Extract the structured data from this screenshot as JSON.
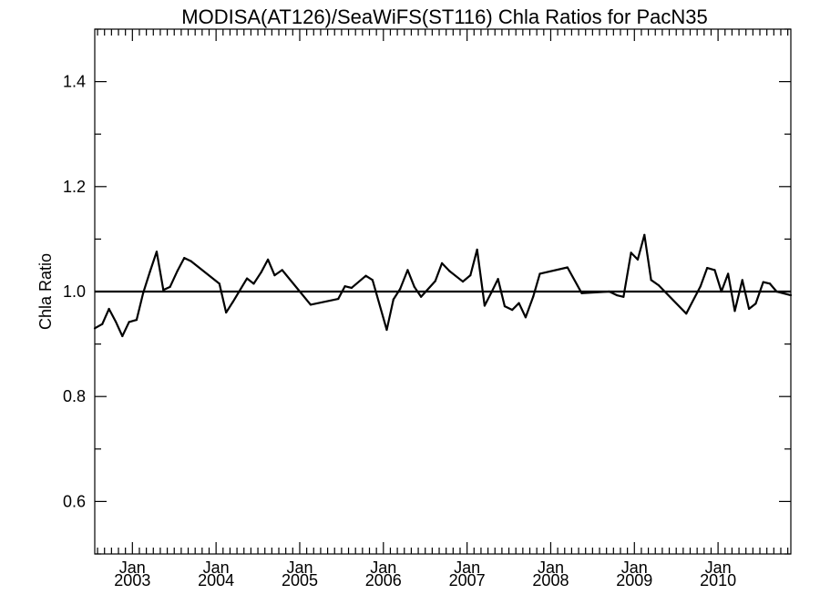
{
  "chart_data": {
    "type": "line",
    "title": "MODISA(AT126)/SeaWiFS(ST116)  Chla Ratios for PacN35",
    "xlabel": "",
    "ylabel": "Chla Ratio",
    "xlim": [
      2002.55,
      2010.87
    ],
    "ylim": [
      0.5,
      1.5
    ],
    "reference_line": 1.0,
    "y_ticks": [
      0.6,
      0.8,
      1.0,
      1.2,
      1.4
    ],
    "y_tick_labels": [
      "0.6",
      "0.8",
      "1.0",
      "1.2",
      "1.4"
    ],
    "x_ticks": [
      {
        "value": 2003.0,
        "month": "Jan",
        "year": "2003"
      },
      {
        "value": 2004.0,
        "month": "Jan",
        "year": "2004"
      },
      {
        "value": 2005.0,
        "month": "Jan",
        "year": "2005"
      },
      {
        "value": 2006.0,
        "month": "Jan",
        "year": "2006"
      },
      {
        "value": 2007.0,
        "month": "Jan",
        "year": "2007"
      },
      {
        "value": 2008.0,
        "month": "Jan",
        "year": "2008"
      },
      {
        "value": 2009.0,
        "month": "Jan",
        "year": "2009"
      },
      {
        "value": 2010.0,
        "month": "Jan",
        "year": "2010"
      }
    ],
    "grid": false,
    "series": [
      {
        "points": [
          [
            2002.55,
            0.93
          ],
          [
            2002.64,
            0.938
          ],
          [
            2002.72,
            0.967
          ],
          [
            2002.8,
            0.943
          ],
          [
            2002.88,
            0.915
          ],
          [
            2002.96,
            0.942
          ],
          [
            2003.05,
            0.946
          ],
          [
            2003.13,
            0.998
          ],
          [
            2003.21,
            1.038
          ],
          [
            2003.29,
            1.076
          ],
          [
            2003.37,
            1.003
          ],
          [
            2003.45,
            1.009
          ],
          [
            2003.54,
            1.04
          ],
          [
            2003.62,
            1.064
          ],
          [
            2003.7,
            1.058
          ],
          [
            2004.04,
            1.015
          ],
          [
            2004.12,
            0.96
          ],
          [
            2004.2,
            0.98
          ],
          [
            2004.37,
            1.025
          ],
          [
            2004.45,
            1.015
          ],
          [
            2004.54,
            1.037
          ],
          [
            2004.62,
            1.061
          ],
          [
            2004.7,
            1.031
          ],
          [
            2004.79,
            1.041
          ],
          [
            2005.13,
            0.975
          ],
          [
            2005.46,
            0.986
          ],
          [
            2005.54,
            1.01
          ],
          [
            2005.62,
            1.007
          ],
          [
            2005.79,
            1.03
          ],
          [
            2005.87,
            1.022
          ],
          [
            2006.04,
            0.927
          ],
          [
            2006.12,
            0.985
          ],
          [
            2006.2,
            1.005
          ],
          [
            2006.29,
            1.041
          ],
          [
            2006.37,
            1.009
          ],
          [
            2006.45,
            0.99
          ],
          [
            2006.62,
            1.02
          ],
          [
            2006.7,
            1.054
          ],
          [
            2006.79,
            1.039
          ],
          [
            2006.95,
            1.019
          ],
          [
            2007.04,
            1.031
          ],
          [
            2007.12,
            1.08
          ],
          [
            2007.21,
            0.973
          ],
          [
            2007.29,
            0.998
          ],
          [
            2007.37,
            1.024
          ],
          [
            2007.45,
            0.972
          ],
          [
            2007.54,
            0.965
          ],
          [
            2007.62,
            0.978
          ],
          [
            2007.7,
            0.951
          ],
          [
            2007.79,
            0.99
          ],
          [
            2007.87,
            1.034
          ],
          [
            2008.2,
            1.046
          ],
          [
            2008.37,
            0.997
          ],
          [
            2008.7,
            1.0
          ],
          [
            2008.79,
            0.993
          ],
          [
            2008.87,
            0.99
          ],
          [
            2008.96,
            1.074
          ],
          [
            2009.04,
            1.061
          ],
          [
            2009.12,
            1.108
          ],
          [
            2009.2,
            1.022
          ],
          [
            2009.29,
            1.012
          ],
          [
            2009.62,
            0.958
          ],
          [
            2009.79,
            1.01
          ],
          [
            2009.87,
            1.045
          ],
          [
            2009.96,
            1.041
          ],
          [
            2010.04,
            1.0
          ],
          [
            2010.12,
            1.034
          ],
          [
            2010.2,
            0.963
          ],
          [
            2010.29,
            1.022
          ],
          [
            2010.37,
            0.967
          ],
          [
            2010.45,
            0.977
          ],
          [
            2010.54,
            1.018
          ],
          [
            2010.62,
            1.015
          ],
          [
            2010.7,
            1.0
          ],
          [
            2010.87,
            0.993
          ]
        ]
      }
    ]
  }
}
